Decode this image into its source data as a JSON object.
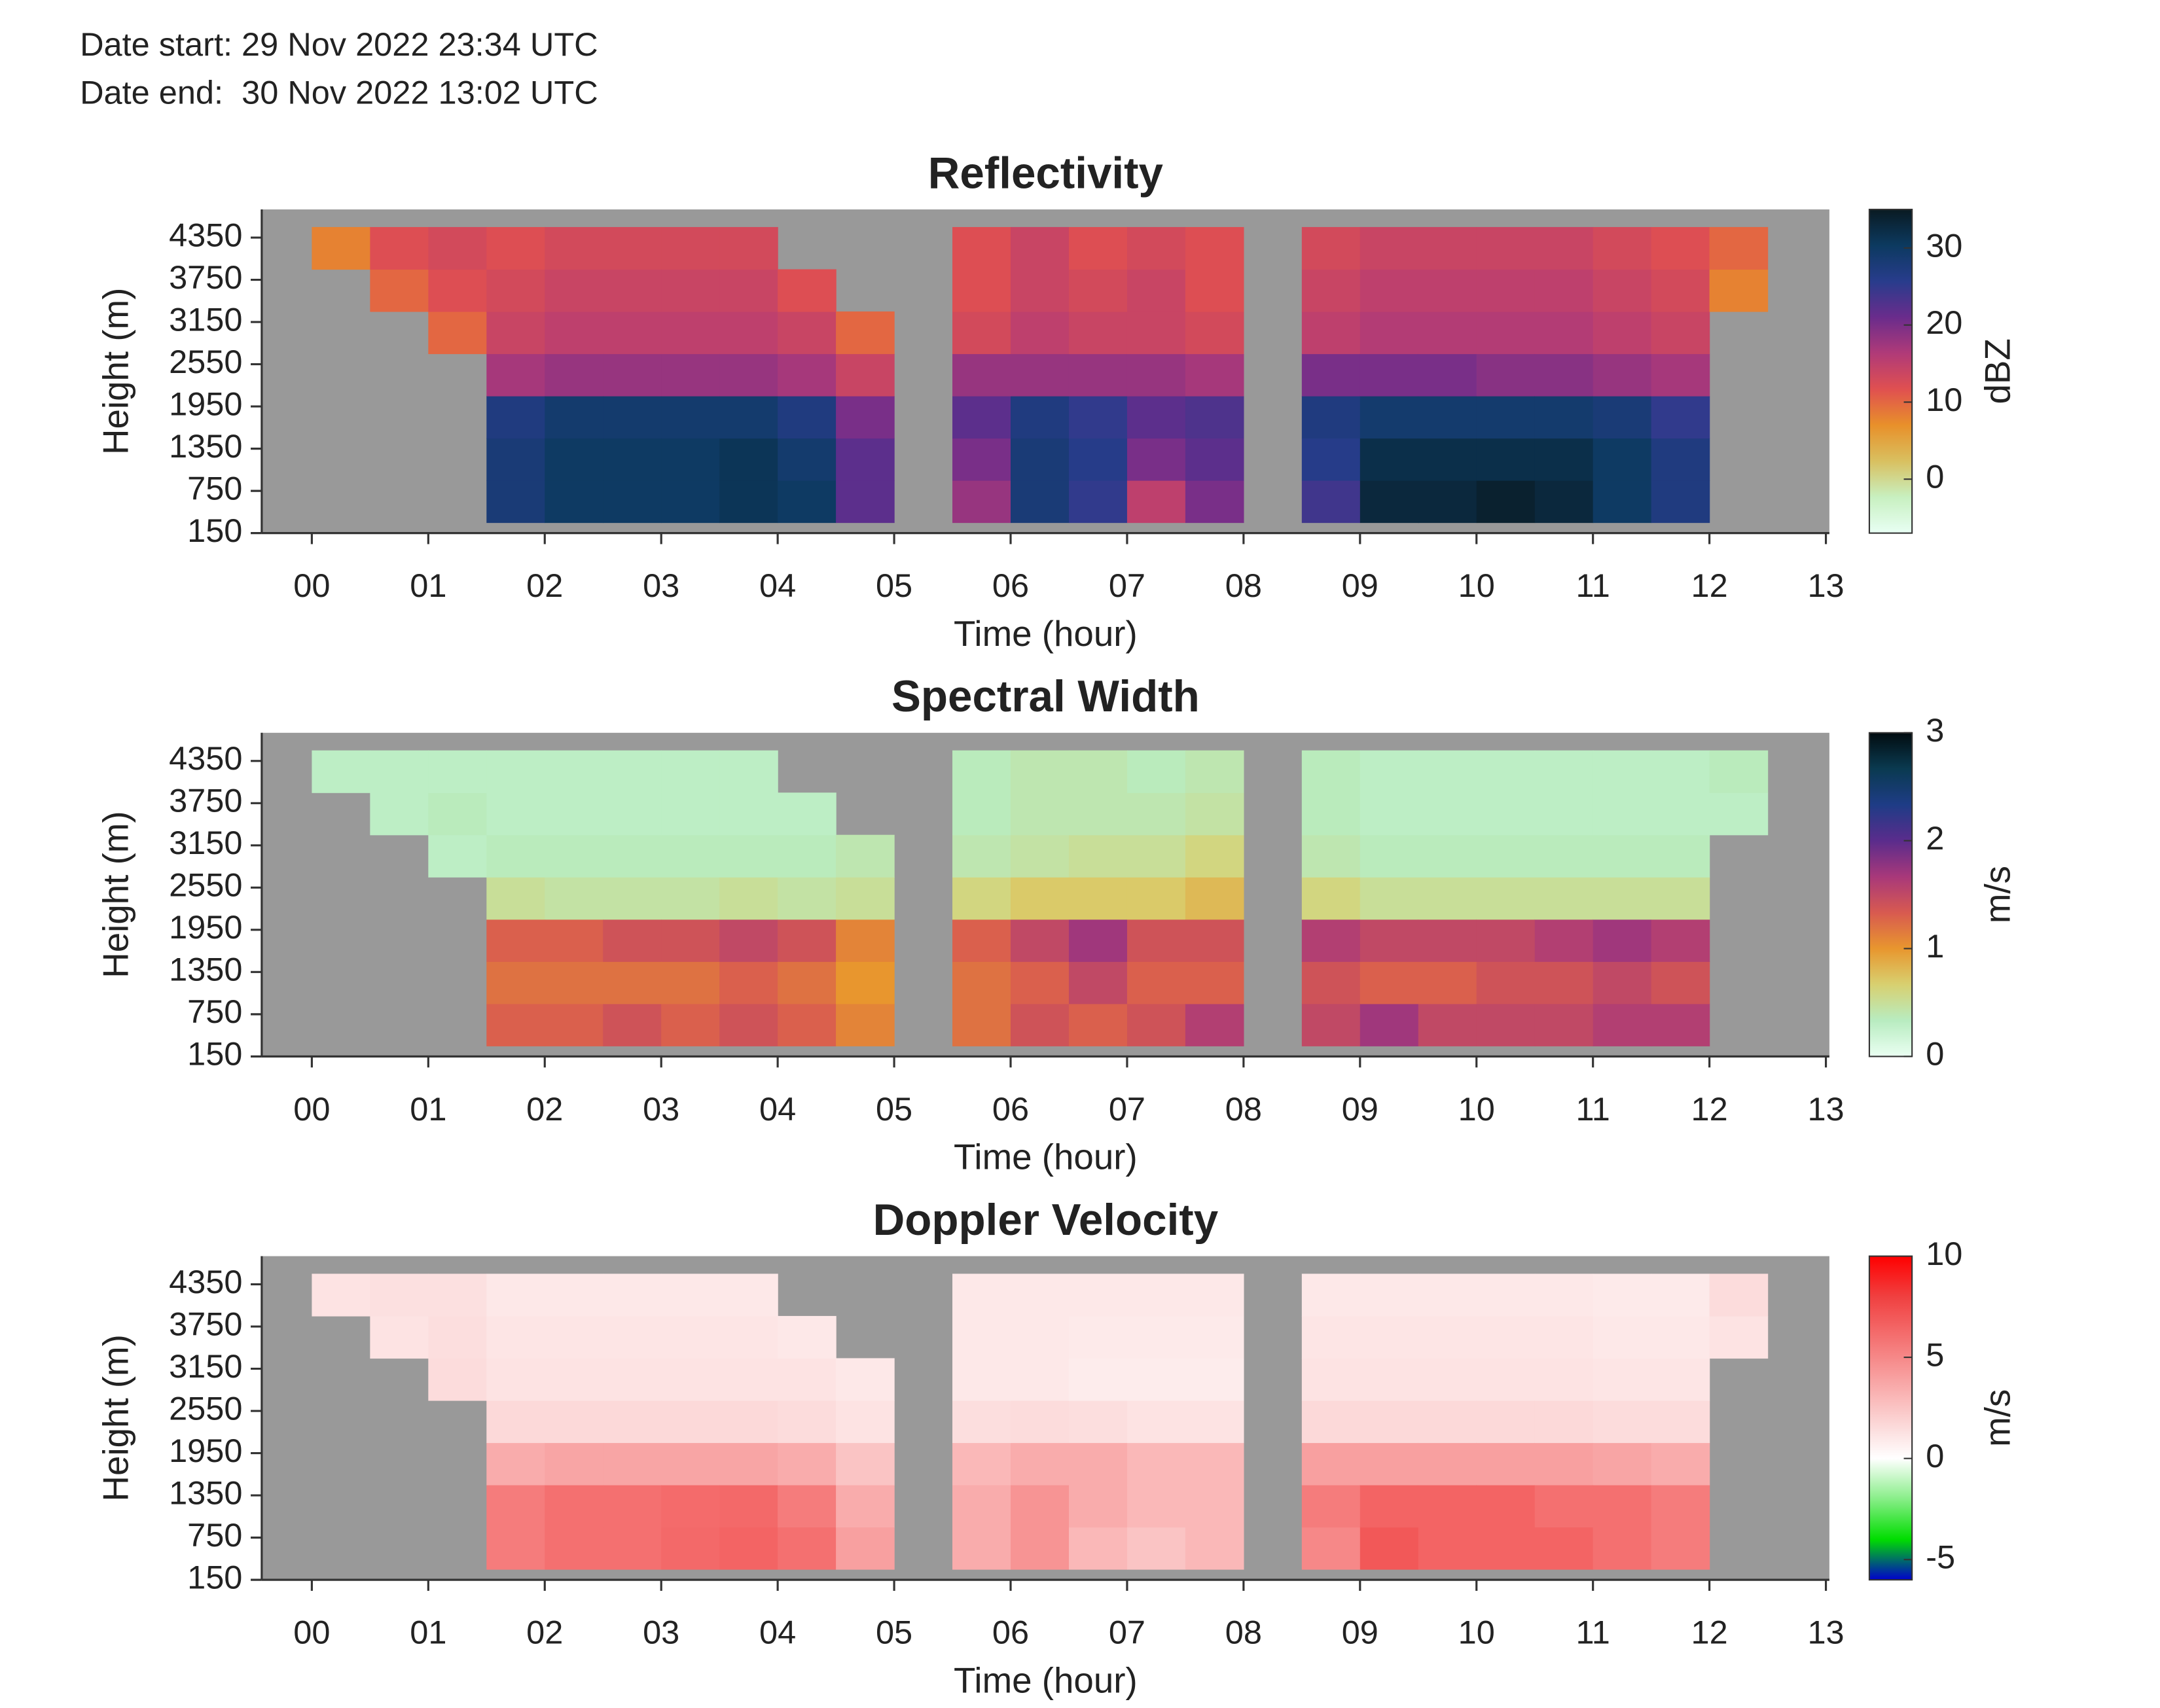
{
  "header": {
    "date_start": "Date start: 29 Nov 2022 23:34 UTC",
    "date_end": "Date end:  30 Nov 2022 13:02 UTC"
  },
  "chart_data": [
    {
      "type": "heatmap",
      "title": "Reflectivity",
      "xlabel": "Time (hour)",
      "ylabel": "Height (m)",
      "x": [
        0.25,
        0.75,
        1.25,
        1.75,
        2.25,
        2.75,
        3.25,
        3.75,
        4.25,
        4.75,
        5.25,
        5.75,
        6.25,
        6.75,
        7.25,
        7.75,
        8.25,
        8.75,
        9.25,
        9.75,
        10.25,
        10.75,
        11.25,
        11.75,
        12.25,
        12.75
      ],
      "y": [
        600,
        1200,
        1800,
        2400,
        3000,
        3600,
        4200
      ],
      "values": [
        [
          null,
          null,
          null,
          null,
          null,
          null,
          8
        ],
        [
          null,
          null,
          null,
          null,
          null,
          10,
          12
        ],
        [
          null,
          null,
          null,
          null,
          10,
          12,
          13
        ],
        [
          28,
          28,
          27,
          17,
          14,
          13,
          12
        ],
        [
          30,
          30,
          29,
          18,
          15,
          14,
          13
        ],
        [
          30,
          30,
          29,
          18,
          15,
          14,
          13
        ],
        [
          30,
          30,
          29,
          18,
          15,
          14,
          13
        ],
        [
          31,
          31,
          29,
          18,
          15,
          14,
          13
        ],
        [
          30,
          29,
          27,
          17,
          14,
          12,
          null
        ],
        [
          22,
          22,
          20,
          14,
          10,
          null,
          null
        ],
        [
          null,
          null,
          null,
          null,
          null,
          null,
          null
        ],
        [
          18,
          20,
          22,
          18,
          13,
          12,
          12
        ],
        [
          28,
          28,
          27,
          18,
          15,
          14,
          14
        ],
        [
          25,
          26,
          25,
          18,
          14,
          13,
          12
        ],
        [
          15,
          20,
          22,
          18,
          14,
          14,
          13
        ],
        [
          20,
          22,
          23,
          17,
          13,
          12,
          12
        ],
        [
          null,
          null,
          null,
          null,
          null,
          null,
          null
        ],
        [
          24,
          26,
          27,
          20,
          15,
          14,
          13
        ],
        [
          33,
          32,
          29,
          20,
          16,
          15,
          14
        ],
        [
          33,
          32,
          29,
          20,
          16,
          15,
          14
        ],
        [
          34,
          32,
          29,
          19,
          16,
          15,
          14
        ],
        [
          33,
          32,
          29,
          19,
          16,
          15,
          14
        ],
        [
          30,
          30,
          28,
          18,
          15,
          14,
          13
        ],
        [
          27,
          27,
          25,
          17,
          14,
          13,
          12
        ],
        [
          null,
          null,
          null,
          null,
          null,
          8,
          10
        ],
        [
          null,
          null,
          null,
          null,
          null,
          null,
          null
        ]
      ],
      "xlim": [
        -0.43,
        13.03
      ],
      "ylim": [
        150,
        4750
      ],
      "xticks": [
        {
          "value": 0,
          "label": "00"
        },
        {
          "value": 1,
          "label": "01"
        },
        {
          "value": 2,
          "label": "02"
        },
        {
          "value": 3,
          "label": "03"
        },
        {
          "value": 4,
          "label": "04"
        },
        {
          "value": 5,
          "label": "05"
        },
        {
          "value": 6,
          "label": "06"
        },
        {
          "value": 7,
          "label": "07"
        },
        {
          "value": 8,
          "label": "08"
        },
        {
          "value": 9,
          "label": "09"
        },
        10,
        11,
        12,
        13
      ],
      "yticks": [
        150,
        750,
        1350,
        1950,
        2550,
        3150,
        3750,
        4350
      ],
      "nodata_color": "#999999",
      "colorbar": {
        "label": "dBZ",
        "clim": [
          -7,
          35
        ],
        "ticks": [
          0,
          10,
          20,
          30
        ],
        "colors": [
          "#e8fff4",
          "#c8f0c0",
          "#d9c060",
          "#e8902a",
          "#e05050",
          "#b03a78",
          "#6a2c8c",
          "#283c8c",
          "#0c3a60",
          "#0a1a22"
        ]
      }
    },
    {
      "type": "heatmap",
      "title": "Spectral Width",
      "xlabel": "Time (hour)",
      "ylabel": "Height (m)",
      "x": [
        0.25,
        0.75,
        1.25,
        1.75,
        2.25,
        2.75,
        3.25,
        3.75,
        4.25,
        4.75,
        5.25,
        5.75,
        6.25,
        6.75,
        7.25,
        7.75,
        8.25,
        8.75,
        9.25,
        9.75,
        10.25,
        10.75,
        11.25,
        11.75,
        12.25,
        12.75
      ],
      "y": [
        600,
        1200,
        1800,
        2400,
        3000,
        3600,
        4200
      ],
      "values": [
        [
          null,
          null,
          null,
          null,
          null,
          null,
          0.3
        ],
        [
          null,
          null,
          null,
          null,
          null,
          0.3,
          0.3
        ],
        [
          null,
          null,
          null,
          null,
          0.3,
          0.35,
          0.3
        ],
        [
          1.3,
          1.2,
          1.3,
          0.5,
          0.35,
          0.3,
          0.3
        ],
        [
          1.3,
          1.2,
          1.3,
          0.45,
          0.35,
          0.3,
          0.3
        ],
        [
          1.4,
          1.2,
          1.4,
          0.45,
          0.35,
          0.3,
          0.3
        ],
        [
          1.3,
          1.2,
          1.4,
          0.45,
          0.35,
          0.3,
          0.3
        ],
        [
          1.4,
          1.3,
          1.5,
          0.5,
          0.35,
          0.3,
          0.3
        ],
        [
          1.3,
          1.2,
          1.4,
          0.45,
          0.35,
          0.3,
          null
        ],
        [
          1.1,
          1.0,
          1.1,
          0.5,
          0.4,
          null,
          null
        ],
        [
          null,
          null,
          null,
          null,
          null,
          null,
          null
        ],
        [
          1.2,
          1.2,
          1.3,
          0.6,
          0.4,
          0.35,
          0.35
        ],
        [
          1.4,
          1.3,
          1.5,
          0.7,
          0.45,
          0.4,
          0.4
        ],
        [
          1.3,
          1.5,
          1.7,
          0.7,
          0.5,
          0.4,
          0.4
        ],
        [
          1.4,
          1.3,
          1.4,
          0.7,
          0.5,
          0.4,
          0.35
        ],
        [
          1.6,
          1.3,
          1.4,
          0.8,
          0.6,
          0.45,
          0.4
        ],
        [
          null,
          null,
          null,
          null,
          null,
          null,
          null
        ],
        [
          1.5,
          1.4,
          1.6,
          0.6,
          0.4,
          0.35,
          0.35
        ],
        [
          1.7,
          1.3,
          1.5,
          0.5,
          0.35,
          0.3,
          0.3
        ],
        [
          1.5,
          1.3,
          1.5,
          0.5,
          0.35,
          0.3,
          0.3
        ],
        [
          1.5,
          1.4,
          1.5,
          0.5,
          0.35,
          0.3,
          0.3
        ],
        [
          1.5,
          1.4,
          1.6,
          0.5,
          0.35,
          0.3,
          0.3
        ],
        [
          1.6,
          1.5,
          1.7,
          0.5,
          0.35,
          0.3,
          0.3
        ],
        [
          1.6,
          1.4,
          1.6,
          0.5,
          0.35,
          0.3,
          0.3
        ],
        [
          null,
          null,
          null,
          null,
          null,
          0.3,
          0.35
        ],
        [
          null,
          null,
          null,
          null,
          null,
          null,
          null
        ]
      ],
      "xlim": [
        -0.43,
        13.03
      ],
      "ylim": [
        150,
        4750
      ],
      "xticks": [
        {
          "value": 0,
          "label": "00"
        },
        {
          "value": 1,
          "label": "01"
        },
        {
          "value": 2,
          "label": "02"
        },
        {
          "value": 3,
          "label": "03"
        },
        {
          "value": 4,
          "label": "04"
        },
        {
          "value": 5,
          "label": "05"
        },
        {
          "value": 6,
          "label": "06"
        },
        {
          "value": 7,
          "label": "07"
        },
        {
          "value": 8,
          "label": "08"
        },
        {
          "value": 9,
          "label": "09"
        },
        10,
        11,
        12,
        13
      ],
      "yticks": [
        150,
        750,
        1350,
        1950,
        2550,
        3150,
        3750,
        4350
      ],
      "nodata_color": "#999999",
      "colorbar": {
        "label": "m/s",
        "clim": [
          0,
          3
        ],
        "ticks": [
          0,
          1,
          2,
          3
        ],
        "colors": [
          "#eafff2",
          "#b8ecc0",
          "#d8d070",
          "#e8962e",
          "#d85a50",
          "#a8387a",
          "#5a2c8c",
          "#1e3c86",
          "#0a3a50",
          "#020c10"
        ]
      }
    },
    {
      "type": "heatmap",
      "title": "Doppler Velocity",
      "xlabel": "Time (hour)",
      "ylabel": "Height (m)",
      "x": [
        0.25,
        0.75,
        1.25,
        1.75,
        2.25,
        2.75,
        3.25,
        3.75,
        4.25,
        4.75,
        5.25,
        5.75,
        6.25,
        6.75,
        7.25,
        7.75,
        8.25,
        8.75,
        9.25,
        9.75,
        10.25,
        10.75,
        11.25,
        11.75,
        12.25,
        12.75
      ],
      "y": [
        600,
        1200,
        1800,
        2400,
        3000,
        3600,
        4200
      ],
      "values": [
        [
          null,
          null,
          null,
          null,
          null,
          null,
          1.2
        ],
        [
          null,
          null,
          null,
          null,
          null,
          1.2,
          1.3
        ],
        [
          null,
          null,
          null,
          null,
          1.5,
          1.4,
          1.3
        ],
        [
          5.5,
          5.5,
          3.5,
          1.6,
          1.2,
          1.1,
          1.0
        ],
        [
          6,
          6,
          3.8,
          1.6,
          1.2,
          1.1,
          1.0
        ],
        [
          6,
          6,
          3.8,
          1.6,
          1.2,
          1.1,
          1.0
        ],
        [
          6.3,
          6.2,
          3.8,
          1.6,
          1.2,
          1.1,
          1.0
        ],
        [
          6.5,
          6.3,
          3.8,
          1.6,
          1.2,
          1.1,
          1.0
        ],
        [
          6,
          5.5,
          3.5,
          1.5,
          1.2,
          1.0,
          null
        ],
        [
          4,
          3.5,
          2.5,
          1.2,
          1.0,
          null,
          null
        ],
        [
          null,
          null,
          null,
          null,
          null,
          null,
          null
        ],
        [
          3.5,
          3.5,
          3,
          1.4,
          1.0,
          1.0,
          1.0
        ],
        [
          4.5,
          4.5,
          3.5,
          1.5,
          1.0,
          1.0,
          1.0
        ],
        [
          3,
          3.5,
          3.5,
          1.4,
          0.8,
          0.9,
          1.0
        ],
        [
          2.5,
          3,
          3,
          1.2,
          0.8,
          0.9,
          1.0
        ],
        [
          3,
          3,
          3,
          1.2,
          0.8,
          0.9,
          1.0
        ],
        [
          null,
          null,
          null,
          null,
          null,
          null,
          null
        ],
        [
          5,
          5.5,
          4,
          1.6,
          1.2,
          1.1,
          1.0
        ],
        [
          7,
          6.5,
          4,
          1.6,
          1.2,
          1.1,
          1.0
        ],
        [
          6.5,
          6.5,
          4,
          1.6,
          1.2,
          1.1,
          1.0
        ],
        [
          6.5,
          6.5,
          4,
          1.6,
          1.2,
          1.1,
          1.0
        ],
        [
          6.5,
          6,
          4,
          1.6,
          1.2,
          1.1,
          1.0
        ],
        [
          6,
          6,
          3.8,
          1.5,
          1.1,
          1.0,
          0.9
        ],
        [
          5.5,
          5.5,
          3.5,
          1.5,
          1.1,
          1.0,
          0.9
        ],
        [
          null,
          null,
          null,
          null,
          null,
          1.2,
          1.5
        ],
        [
          null,
          null,
          null,
          null,
          null,
          null,
          null
        ]
      ],
      "xlim": [
        -0.43,
        13.03
      ],
      "ylim": [
        150,
        4750
      ],
      "xticks": [
        {
          "value": 0,
          "label": "00"
        },
        {
          "value": 1,
          "label": "01"
        },
        {
          "value": 2,
          "label": "02"
        },
        {
          "value": 3,
          "label": "03"
        },
        {
          "value": 4,
          "label": "04"
        },
        {
          "value": 5,
          "label": "05"
        },
        {
          "value": 6,
          "label": "06"
        },
        {
          "value": 7,
          "label": "07"
        },
        {
          "value": 8,
          "label": "08"
        },
        {
          "value": 9,
          "label": "09"
        },
        10,
        11,
        12,
        13
      ],
      "yticks": [
        150,
        750,
        1350,
        1950,
        2550,
        3150,
        3750,
        4350
      ],
      "nodata_color": "#999999",
      "colorbar": {
        "label": "m/s",
        "clim": [
          -6,
          10
        ],
        "ticks": [
          -5,
          0,
          5,
          10
        ],
        "colors": [
          "#0000cc",
          "#00dd00",
          "#88ee88",
          "#ffffff",
          "#fbd0d0",
          "#f8a0a0",
          "#f47070",
          "#f04040",
          "#ff0000"
        ]
      }
    }
  ]
}
